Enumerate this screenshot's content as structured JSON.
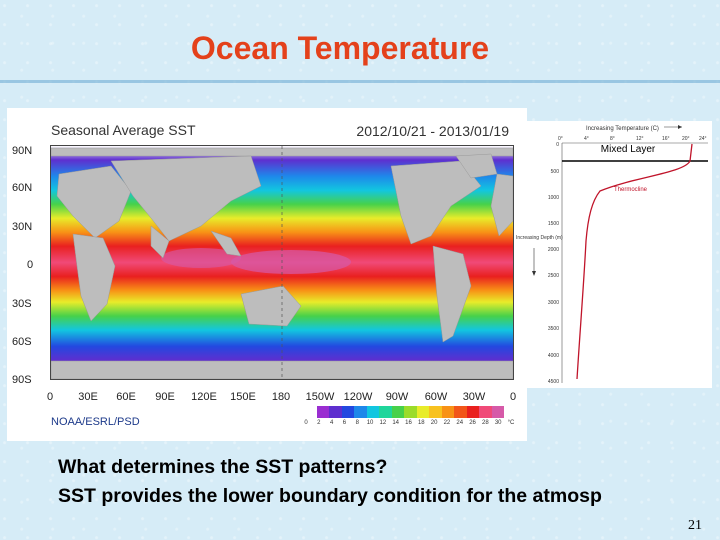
{
  "slide": {
    "title": "Ocean Temperature",
    "line1": "What determines the SST patterns?",
    "line2": "SST provides the lower boundary condition for the atmosp",
    "page": "21"
  },
  "sst_map": {
    "title": "Seasonal Average SST",
    "date_range": "2012/10/21 - 2013/01/19",
    "credit": "NOAA/ESRL/PSD",
    "lat_labels": [
      "90N",
      "60N",
      "30N",
      "0",
      "30S",
      "60S",
      "90S"
    ],
    "lon_labels": [
      "0",
      "30E",
      "60E",
      "90E",
      "120E",
      "150E",
      "180",
      "150W",
      "120W",
      "90W",
      "60W",
      "30W",
      "0"
    ],
    "colorbar_ticks": [
      "0",
      "2",
      "4",
      "6",
      "8",
      "10",
      "12",
      "14",
      "16",
      "18",
      "20",
      "22",
      "24",
      "26",
      "28",
      "30",
      "°C"
    ],
    "colors": [
      "#ffffff",
      "#9a2ed1",
      "#5e2fcf",
      "#2348e0",
      "#1e88ea",
      "#12c6e0",
      "#1fd69b",
      "#47d14a",
      "#9bdc2a",
      "#e8ec2a",
      "#f8c21f",
      "#f89216",
      "#f2561a",
      "#e9201f",
      "#f04a78",
      "#d65aa8"
    ]
  },
  "profile": {
    "x_title": "Increasing Temperature (C)",
    "x_ticks": [
      "0°",
      "4°",
      "8°",
      "12°",
      "16°",
      "20°",
      "24°"
    ],
    "y_ticks": [
      "0",
      "500",
      "1000",
      "1500",
      "2000",
      "2500",
      "3000",
      "3500",
      "4000",
      "4500"
    ],
    "y_title": "Increasing Depth (m)",
    "mixed_layer_label": "Mixed Layer",
    "thermocline_label": "Thermocline"
  }
}
